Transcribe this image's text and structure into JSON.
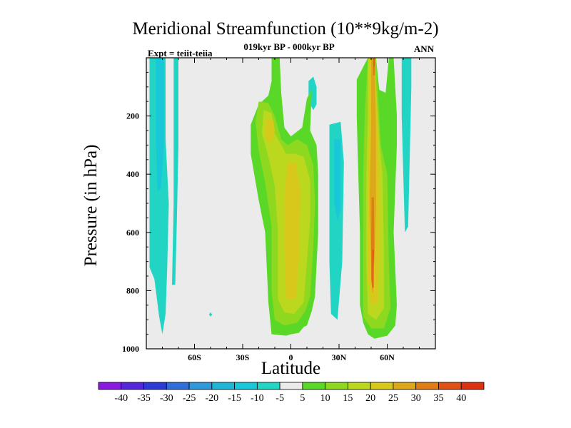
{
  "chart_data": {
    "type": "heatmap",
    "title": "Meridional Streamfunction (10**9kg/m-2)",
    "subtitle": "019kyr BP - 000kyr BP",
    "left_label": "Expt = teiit-teiia",
    "right_label": "ANN",
    "xlabel": "Latitude",
    "ylabel": "Pressure (in hPa)",
    "xlim": [
      -90,
      90
    ],
    "ylim": [
      1000,
      0
    ],
    "x_ticks": [
      {
        "value": -60,
        "label": "60S"
      },
      {
        "value": -30,
        "label": "30S"
      },
      {
        "value": 0,
        "label": "0"
      },
      {
        "value": 30,
        "label": "30N"
      },
      {
        "value": 60,
        "label": "60N"
      }
    ],
    "y_ticks": [
      {
        "value": 200,
        "label": "200"
      },
      {
        "value": 400,
        "label": "400"
      },
      {
        "value": 600,
        "label": "600"
      },
      {
        "value": 800,
        "label": "800"
      },
      {
        "value": 1000,
        "label": "1000"
      }
    ],
    "colorbar": {
      "levels": [
        -40,
        -35,
        -30,
        -25,
        -20,
        -15,
        -10,
        -5,
        5,
        10,
        15,
        20,
        25,
        30,
        35,
        40
      ],
      "labels": [
        "-40",
        "-35",
        "-30",
        "-25",
        "-20",
        "-15",
        "-10",
        "-5",
        "5",
        "10",
        "15",
        "20",
        "25",
        "30",
        "35",
        "40"
      ],
      "colors": [
        "#8a1ae0",
        "#5626dc",
        "#2c3ad6",
        "#2f6ed8",
        "#2e98d8",
        "#20b4d6",
        "#18c8d8",
        "#22d4c4",
        "#ebebeb",
        "#5ad828",
        "#8ed820",
        "#bcd81e",
        "#d8c81c",
        "#dca81a",
        "#e07c16",
        "#e05214",
        "#dc3212"
      ]
    },
    "contour_regions": [
      {
        "level": -5,
        "points": [
          [
            -88,
            0
          ],
          [
            -78,
            0
          ],
          [
            -78,
            280
          ],
          [
            -76,
            500
          ],
          [
            -77,
            720
          ],
          [
            -78,
            880
          ],
          [
            -80,
            950
          ],
          [
            -82,
            890
          ],
          [
            -85,
            760
          ],
          [
            -88,
            720
          ]
        ]
      },
      {
        "level": -10,
        "points": [
          [
            -84,
            0
          ],
          [
            -79,
            0
          ],
          [
            -79,
            300
          ],
          [
            -81,
            450
          ],
          [
            -83,
            460
          ],
          [
            -84,
            300
          ]
        ]
      },
      {
        "level": -5,
        "points": [
          [
            -73,
            0
          ],
          [
            -70,
            0
          ],
          [
            -70,
            300
          ],
          [
            -71,
            560
          ],
          [
            -72,
            780
          ],
          [
            -74,
            780
          ],
          [
            -73,
            500
          ]
        ]
      },
      {
        "level": -5,
        "points": [
          [
            -50,
            875
          ],
          [
            -49,
            882
          ],
          [
            -50,
            889
          ],
          [
            -51,
            882
          ]
        ]
      },
      {
        "level": -5,
        "points": [
          [
            -11,
            170
          ],
          [
            -9,
            90
          ],
          [
            -7,
            170
          ],
          [
            -8,
            230
          ],
          [
            -10,
            220
          ]
        ]
      },
      {
        "level": -5,
        "points": [
          [
            11,
            80
          ],
          [
            14,
            65
          ],
          [
            16,
            100
          ],
          [
            16,
            160
          ],
          [
            14,
            180
          ],
          [
            11,
            150
          ]
        ]
      },
      {
        "level": -5,
        "points": [
          [
            24,
            230
          ],
          [
            31,
            220
          ],
          [
            33,
            360
          ],
          [
            32,
            700
          ],
          [
            29,
            900
          ],
          [
            25,
            880
          ],
          [
            24,
            700
          ],
          [
            24,
            400
          ]
        ]
      },
      {
        "level": -10,
        "points": [
          [
            27,
            280
          ],
          [
            31,
            280
          ],
          [
            31,
            520
          ],
          [
            29,
            560
          ],
          [
            27,
            500
          ]
        ]
      },
      {
        "level": -5,
        "points": [
          [
            69,
            0
          ],
          [
            75,
            0
          ],
          [
            75,
            100
          ],
          [
            74,
            350
          ],
          [
            73,
            580
          ],
          [
            71,
            600
          ],
          [
            70,
            400
          ],
          [
            69,
            200
          ]
        ]
      },
      {
        "level": 5,
        "points": [
          [
            -12,
            0
          ],
          [
            -7,
            0
          ],
          [
            -6,
            120
          ],
          [
            -4,
            240
          ],
          [
            0,
            270
          ],
          [
            7,
            240
          ],
          [
            10,
            140
          ],
          [
            12,
            120
          ],
          [
            13,
            110
          ],
          [
            12,
            250
          ],
          [
            16,
            300
          ],
          [
            17,
            400
          ],
          [
            17,
            600
          ],
          [
            15,
            820
          ],
          [
            13,
            870
          ],
          [
            10,
            920
          ],
          [
            8,
            925
          ],
          [
            5,
            945
          ],
          [
            0,
            950
          ],
          [
            -3,
            955
          ],
          [
            -12,
            950
          ],
          [
            -14,
            840
          ],
          [
            -16,
            600
          ],
          [
            -20,
            490
          ],
          [
            -25,
            330
          ],
          [
            -25,
            230
          ],
          [
            -20,
            160
          ],
          [
            -14,
            130
          ],
          [
            -12,
            80
          ]
        ]
      },
      {
        "level": 10,
        "points": [
          [
            -20,
            150
          ],
          [
            -14,
            155
          ],
          [
            -10,
            200
          ],
          [
            -6,
            280
          ],
          [
            -2,
            300
          ],
          [
            4,
            280
          ],
          [
            10,
            300
          ],
          [
            14,
            370
          ],
          [
            15,
            500
          ],
          [
            14,
            650
          ],
          [
            12,
            820
          ],
          [
            9,
            870
          ],
          [
            4,
            910
          ],
          [
            -4,
            920
          ],
          [
            -10,
            900
          ],
          [
            -12,
            800
          ],
          [
            -12,
            580
          ],
          [
            -16,
            430
          ],
          [
            -20,
            320
          ],
          [
            -22,
            220
          ]
        ]
      },
      {
        "level": 15,
        "points": [
          [
            -17,
            180
          ],
          [
            -12,
            190
          ],
          [
            -10,
            260
          ],
          [
            -6,
            300
          ],
          [
            -3,
            330
          ],
          [
            3,
            330
          ],
          [
            8,
            340
          ],
          [
            12,
            420
          ],
          [
            12,
            560
          ],
          [
            10,
            700
          ],
          [
            8,
            840
          ],
          [
            2,
            880
          ],
          [
            -4,
            875
          ],
          [
            -8,
            830
          ],
          [
            -8,
            600
          ],
          [
            -10,
            440
          ],
          [
            -14,
            340
          ],
          [
            -18,
            260
          ]
        ]
      },
      {
        "level": 20,
        "points": [
          [
            -15,
            210
          ],
          [
            -11,
            215
          ],
          [
            -10,
            250
          ],
          [
            -12,
            290
          ],
          [
            -15,
            285
          ],
          [
            -16,
            250
          ]
        ]
      },
      {
        "level": 20,
        "points": [
          [
            -2,
            360
          ],
          [
            3,
            360
          ],
          [
            6,
            460
          ],
          [
            5,
            700
          ],
          [
            3,
            830
          ],
          [
            -3,
            830
          ],
          [
            -4,
            650
          ],
          [
            -4,
            460
          ]
        ]
      },
      {
        "level": 5,
        "points": [
          [
            41,
            75
          ],
          [
            48,
            0
          ],
          [
            53,
            0
          ],
          [
            55,
            110
          ],
          [
            59,
            120
          ],
          [
            61,
            0
          ],
          [
            64,
            0
          ],
          [
            66,
            200
          ],
          [
            66,
            300
          ],
          [
            64,
            600
          ],
          [
            66,
            850
          ],
          [
            65,
            920
          ],
          [
            60,
            955
          ],
          [
            52,
            965
          ],
          [
            48,
            950
          ],
          [
            45,
            910
          ],
          [
            43,
            850
          ],
          [
            43,
            600
          ],
          [
            42,
            400
          ],
          [
            41,
            200
          ]
        ]
      },
      {
        "level": 10,
        "points": [
          [
            48,
            0
          ],
          [
            53,
            0
          ],
          [
            56,
            300
          ],
          [
            60,
            400
          ],
          [
            61,
            700
          ],
          [
            62,
            860
          ],
          [
            58,
            930
          ],
          [
            50,
            930
          ],
          [
            45,
            890
          ],
          [
            45,
            700
          ],
          [
            45,
            400
          ],
          [
            46,
            200
          ]
        ]
      },
      {
        "level": 15,
        "points": [
          [
            48,
            0
          ],
          [
            52,
            0
          ],
          [
            55,
            280
          ],
          [
            57,
            400
          ],
          [
            58,
            650
          ],
          [
            58,
            860
          ],
          [
            53,
            900
          ],
          [
            48,
            880
          ],
          [
            47,
            700
          ],
          [
            47,
            400
          ],
          [
            48,
            200
          ]
        ]
      },
      {
        "level": 20,
        "points": [
          [
            49,
            0
          ],
          [
            52,
            0
          ],
          [
            54,
            230
          ],
          [
            55,
            450
          ],
          [
            55,
            700
          ],
          [
            54,
            840
          ],
          [
            50,
            850
          ],
          [
            48,
            760
          ],
          [
            48,
            450
          ],
          [
            49,
            200
          ]
        ]
      },
      {
        "level": 25,
        "points": [
          [
            50,
            0
          ],
          [
            52,
            0
          ],
          [
            53,
            240
          ],
          [
            53,
            520
          ],
          [
            52,
            700
          ],
          [
            50,
            700
          ],
          [
            49,
            500
          ],
          [
            50,
            240
          ]
        ]
      },
      {
        "level": 30,
        "points": [
          [
            50.3,
            480
          ],
          [
            51.7,
            480
          ],
          [
            52,
            650
          ],
          [
            51,
            810
          ],
          [
            50,
            760
          ],
          [
            50,
            620
          ]
        ]
      },
      {
        "level": 35,
        "points": [
          [
            50.8,
            660
          ],
          [
            51.6,
            660
          ],
          [
            51.5,
            790
          ],
          [
            50.9,
            790
          ]
        ]
      },
      {
        "level": 30,
        "points": [
          [
            51.2,
            0
          ],
          [
            52.3,
            0
          ],
          [
            52.3,
            60
          ],
          [
            51.2,
            60
          ]
        ]
      },
      {
        "level": 35,
        "points": [
          [
            51.5,
            0
          ],
          [
            52.1,
            0
          ],
          [
            52.1,
            30
          ],
          [
            51.5,
            30
          ]
        ]
      }
    ]
  }
}
